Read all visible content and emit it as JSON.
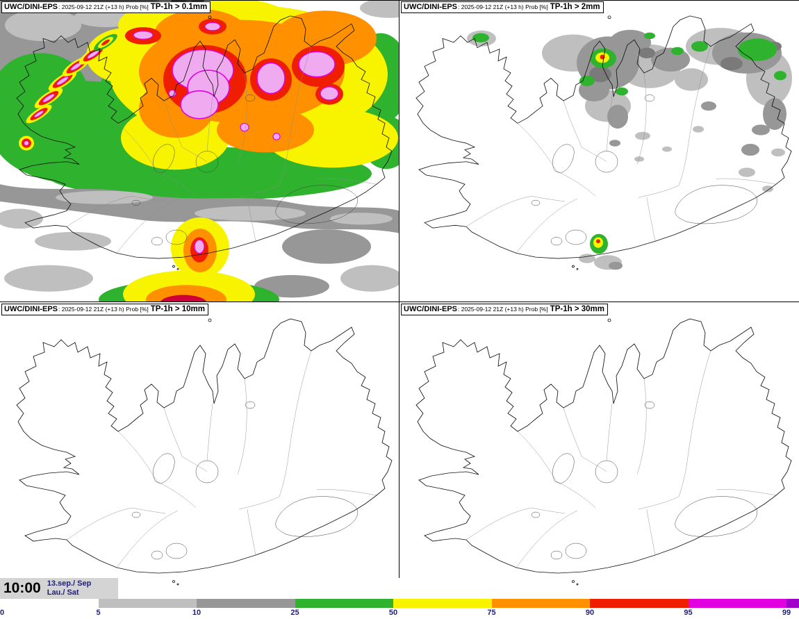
{
  "panels": [
    {
      "model": "UWC/DINI-EPS",
      "run": ": 2025-09-12 21Z (+13 h) Prob [%]",
      "param": "TP-1h > 0.1mm"
    },
    {
      "model": "UWC/DINI-EPS",
      "run": ": 2025-09-12 21Z (+13 h) Prob [%]",
      "param": "TP-1h > 2mm"
    },
    {
      "model": "UWC/DINI-EPS",
      "run": ": 2025-09-12 21Z (+13 h) Prob [%]",
      "param": "TP-1h > 10mm"
    },
    {
      "model": "UWC/DINI-EPS",
      "run": ": 2025-09-12 21Z (+13 h) Prob [%]",
      "param": "TP-1h > 30mm"
    }
  ],
  "footer": {
    "time": "10:00",
    "date_month": "13.sep./ Sep",
    "date_day": "Lau./ Sat"
  },
  "colorbar": {
    "ticks": [
      "0",
      "5",
      "10",
      "25",
      "50",
      "75",
      "90",
      "95",
      "99"
    ],
    "segments": [
      "white",
      "gray_light",
      "gray",
      "green",
      "yellow",
      "orange",
      "red",
      "magenta"
    ],
    "overflow": "purple"
  },
  "palette": {
    "white": "#ffffff",
    "gray_light": "#bfbfbf",
    "gray": "#979797",
    "gray_dark": "#7a7a7a",
    "green": "#2fb32f",
    "yellow": "#f8f400",
    "orange": "#ff9100",
    "red": "#f01e00",
    "crimson": "#cf0038",
    "magenta": "#e000e0",
    "pink": "#f0aaf0",
    "purple": "#a000c8",
    "label_navy": "#1e1e78",
    "timebox": "#d4d4d4"
  }
}
